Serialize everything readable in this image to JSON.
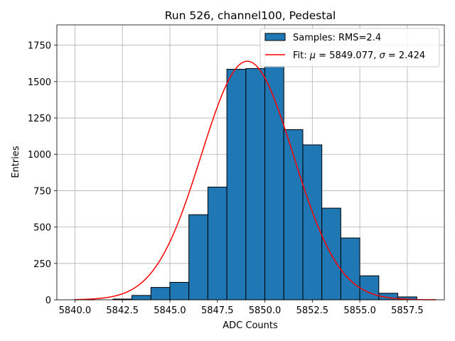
{
  "chart_data": {
    "type": "bar",
    "title": "Run 526, channel100, Pedestal",
    "xlabel": "ADC Counts",
    "ylabel": "Entries",
    "xlim": [
      5839.05,
      5859.45
    ],
    "ylim": [
      0,
      1890
    ],
    "grid": true,
    "legend_position": "top-right",
    "bin_width": 1.0,
    "bin_start": 5840.0,
    "values": [
      2,
      0,
      5,
      30,
      85,
      120,
      585,
      775,
      1585,
      1590,
      1605,
      1170,
      1065,
      630,
      425,
      165,
      45,
      20,
      0
    ],
    "histogram_label": "Samples: RMS=2.4",
    "histogram_color": "#1f77b4",
    "histogram_edge": "#000000",
    "fit": {
      "label_prefix": "Fit: ",
      "label_mu_symbol": "μ",
      "label_mu_text": " = 5849.077, ",
      "label_sigma_symbol": "σ",
      "label_sigma_text": " = 2.424",
      "mu": 5849.077,
      "sigma": 2.424,
      "amplitude": 1640,
      "x_range": [
        5840.0,
        5859.0
      ],
      "color": "#ff0000"
    },
    "x_ticks": [
      5840.0,
      5842.5,
      5845.0,
      5847.5,
      5850.0,
      5852.5,
      5855.0,
      5857.5
    ],
    "x_tick_labels": [
      "5840.0",
      "5842.5",
      "5845.0",
      "5847.5",
      "5850.0",
      "5852.5",
      "5855.0",
      "5857.5"
    ],
    "y_ticks": [
      0,
      250,
      500,
      750,
      1000,
      1250,
      1500,
      1750
    ],
    "y_tick_labels": [
      "0",
      "250",
      "500",
      "750",
      "1000",
      "1250",
      "1500",
      "1750"
    ]
  }
}
